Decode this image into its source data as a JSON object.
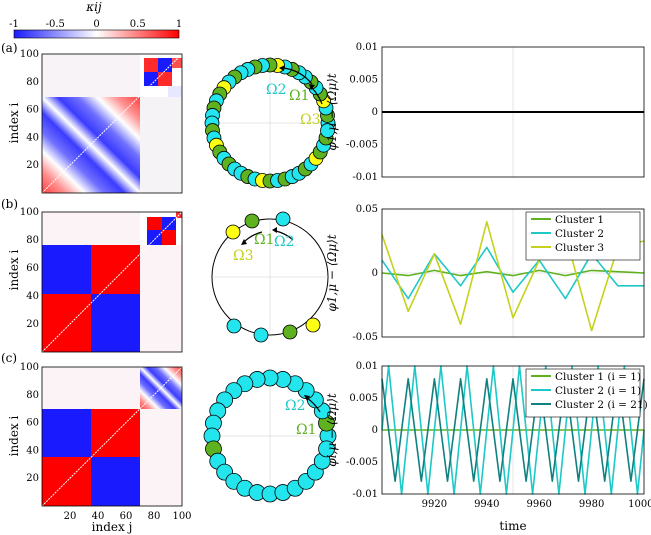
{
  "colorbar": {
    "label": "κij",
    "ticks": [
      "-1",
      "-0.5",
      "0",
      "0.5",
      "1"
    ]
  },
  "panels": [
    {
      "tag": "(a)",
      "matrix": {
        "ylabel": "index i",
        "yticks": [
          "20",
          "40",
          "60",
          "80",
          "100"
        ],
        "xlabel": "",
        "xticks": [],
        "blocks": [
          {
            "from": 1,
            "to": 70,
            "pattern": "diagonal-band"
          },
          {
            "from": 71,
            "to": 100,
            "pattern": "checker"
          }
        ]
      },
      "circle": {
        "omega_labels": [
          "Ω2",
          "Ω1",
          "Ω3"
        ]
      },
      "timeseries": {
        "ylabel": "φ1,μ − ⟨Ωμ⟩t",
        "yticks": [
          "0.01",
          "0.005",
          "0",
          "-0.005",
          "-0.01"
        ],
        "xticks": [],
        "xlabel": "",
        "legend": []
      }
    },
    {
      "tag": "(b)",
      "matrix": {
        "ylabel": "index i",
        "yticks": [
          "20",
          "40",
          "60",
          "80",
          "100"
        ],
        "xlabel": "",
        "xticks": [],
        "blocks": [
          {
            "from": 1,
            "to": 70,
            "pattern": "two-block"
          },
          {
            "from": 71,
            "to": 90,
            "pattern": "two-block-small"
          },
          {
            "from": 91,
            "to": 100,
            "pattern": "checker"
          }
        ]
      },
      "circle": {
        "omega_labels": [
          "Ω1",
          "Ω2",
          "Ω3"
        ]
      },
      "timeseries": {
        "ylabel": "φ1,μ − ⟨Ωμ⟩t",
        "yticks": [
          "0.05",
          "0",
          "-0.05"
        ],
        "xticks": [],
        "xlabel": "",
        "legend": [
          "Cluster 1",
          "Cluster 2",
          "Cluster 3"
        ]
      }
    },
    {
      "tag": "(c)",
      "matrix": {
        "ylabel": "index i",
        "yticks": [
          "20",
          "40",
          "60",
          "80",
          "100"
        ],
        "xlabel": "index j",
        "xticks": [
          "20",
          "40",
          "60",
          "80",
          "100"
        ],
        "blocks": [
          {
            "from": 1,
            "to": 70,
            "pattern": "two-block"
          },
          {
            "from": 71,
            "to": 100,
            "pattern": "diagonal-band"
          }
        ]
      },
      "circle": {
        "omega_labels": [
          "Ω2",
          "Ω1"
        ]
      },
      "timeseries": {
        "ylabel": "φi,μ − ⟨Ωμ⟩t",
        "yticks": [
          "0.01",
          "0.005",
          "0",
          "-0.005",
          "-0.01"
        ],
        "xticks": [
          "9920",
          "9940",
          "9960",
          "9980",
          "10000"
        ],
        "xlabel": "time",
        "legend": [
          "Cluster 1 (i = 1)",
          "Cluster 2 (i = 1)",
          "Cluster 2 (i = 21)"
        ]
      }
    }
  ],
  "chart_data": [
    {
      "type": "line",
      "title": "",
      "xlabel": "",
      "ylabel": "φ1,μ − ⟨Ωμ⟩t",
      "xlim": [
        9900,
        10000
      ],
      "ylim": [
        -0.01,
        0.01
      ],
      "series": [
        {
          "x": [
            9900,
            10000
          ],
          "y": [
            0,
            0
          ]
        }
      ]
    },
    {
      "type": "line",
      "title": "",
      "xlabel": "",
      "ylabel": "φ1,μ − ⟨Ωμ⟩t",
      "xlim": [
        9900,
        10000
      ],
      "ylim": [
        -0.05,
        0.05
      ],
      "series": [
        {
          "name": "Cluster 1",
          "x": [
            9900,
            9910,
            9920,
            9930,
            9940,
            9950,
            9960,
            9970,
            9980,
            9990,
            10000
          ],
          "y": [
            0,
            -0.002,
            0.002,
            -0.002,
            0.001,
            -0.002,
            0.002,
            -0.002,
            0.002,
            0.001,
            0
          ]
        },
        {
          "name": "Cluster 2",
          "x": [
            9900,
            9910,
            9920,
            9930,
            9940,
            9950,
            9960,
            9970,
            9980,
            9990,
            10000
          ],
          "y": [
            0.01,
            -0.02,
            0.015,
            -0.01,
            0.02,
            -0.015,
            0.01,
            -0.02,
            0.015,
            -0.01,
            -0.01
          ]
        },
        {
          "name": "Cluster 3",
          "x": [
            9900,
            9910,
            9920,
            9930,
            9940,
            9950,
            9960,
            9970,
            9980,
            9990,
            10000
          ],
          "y": [
            0.03,
            -0.03,
            0.015,
            -0.04,
            0.04,
            -0.035,
            0.01,
            0.03,
            -0.045,
            0.02,
            0.025
          ]
        }
      ]
    },
    {
      "type": "line",
      "title": "",
      "xlabel": "time",
      "ylabel": "φi,μ − ⟨Ωμ⟩t",
      "xlim": [
        9900,
        10000
      ],
      "ylim": [
        -0.01,
        0.01
      ],
      "series": [
        {
          "name": "Cluster 1 (i = 1)",
          "x": [
            9900,
            10000
          ],
          "y": [
            0,
            0
          ]
        },
        {
          "name": "Cluster 2 (i = 1)",
          "x": [
            9900,
            9902.5,
            9905,
            9907.5,
            9910,
            9912.5,
            9915,
            9917.5,
            9920,
            9922.5,
            9925,
            9927.5,
            9930,
            9932.5,
            9935,
            9937.5,
            9940,
            9942.5,
            9945,
            9947.5,
            9950,
            9952.5,
            9955,
            9957.5,
            9960,
            9962.5,
            9965,
            9967.5,
            9970,
            9972.5,
            9975,
            9977.5,
            9980,
            9982.5,
            9985,
            9987.5,
            9990,
            9992.5,
            9995,
            9997.5,
            10000
          ],
          "y": [
            0,
            0.01,
            0,
            -0.01,
            0,
            0.01,
            0,
            -0.01,
            0,
            0.01,
            0,
            -0.01,
            0,
            0.01,
            0,
            -0.01,
            0,
            0.01,
            0,
            -0.01,
            0,
            0.01,
            0,
            -0.01,
            0,
            0.01,
            0,
            -0.01,
            0,
            0.01,
            0,
            -0.01,
            0,
            0.01,
            0,
            -0.01,
            0,
            0.01,
            0,
            -0.01,
            0
          ]
        },
        {
          "name": "Cluster 2 (i = 21)",
          "x": [
            9900,
            9902.5,
            9905,
            9907.5,
            9910,
            9912.5,
            9915,
            9917.5,
            9920,
            9922.5,
            9925,
            9927.5,
            9930,
            9932.5,
            9935,
            9937.5,
            9940,
            9942.5,
            9945,
            9947.5,
            9950,
            9952.5,
            9955,
            9957.5,
            9960,
            9962.5,
            9965,
            9967.5,
            9970,
            9972.5,
            9975,
            9977.5,
            9980,
            9982.5,
            9985,
            9987.5,
            9990,
            9992.5,
            9995,
            9997.5,
            10000
          ],
          "y": [
            0.008,
            0,
            -0.008,
            0,
            0.008,
            0,
            -0.008,
            0,
            0.008,
            0,
            -0.008,
            0,
            0.008,
            0,
            -0.008,
            0,
            0.008,
            0,
            -0.008,
            0,
            0.008,
            0,
            -0.008,
            0,
            0.008,
            0,
            -0.008,
            0,
            0.008,
            0,
            -0.008,
            0,
            0.008,
            0,
            -0.008,
            0,
            0.008,
            0,
            -0.008,
            0,
            0.008
          ]
        }
      ]
    }
  ],
  "colors": {
    "red": "#ff0000",
    "blue": "#1a1aff",
    "cluster1": "#5fb21f",
    "cluster2": "#1ec8c8",
    "cluster2b": "#108080",
    "cluster3": "#c4d21a",
    "yellow": "#ffff14",
    "cyan": "#22e5ee"
  }
}
